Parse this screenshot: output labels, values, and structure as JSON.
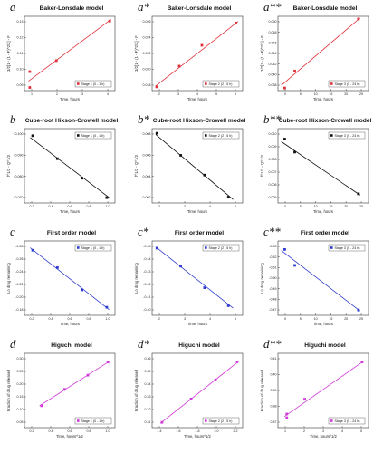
{
  "figure": {
    "layout": "4 rows x 3 columns of scatter plots with linear fits"
  },
  "chart_data": [
    {
      "letter": "a",
      "title": "Baker-Lonsdale model",
      "type": "scatter",
      "xlabel": "Time, hours",
      "ylabel": "3/2[1 - (1 - F)^2/3] - F",
      "xlim": [
        0.8,
        4.2
      ],
      "ylim": [
        0.088,
        0.135
      ],
      "xticks": [
        "1",
        "2",
        "3",
        "4"
      ],
      "yticks": [
        "0.09",
        "0.10",
        "0.11",
        "0.12",
        "0.13"
      ],
      "legend": "Stage 1 (0 - 1 h)",
      "color": "#e0303a",
      "legend_pos": "bottom-right",
      "points": [
        {
          "x": 1,
          "y": 0.09
        },
        {
          "x": 1,
          "y": 0.1
        },
        {
          "x": 2,
          "y": 0.107
        },
        {
          "x": 4,
          "y": 0.132
        }
      ],
      "fit": [
        {
          "x": 0.95,
          "y": 0.094
        },
        {
          "x": 4.05,
          "y": 0.133
        }
      ]
    },
    {
      "letter": "a*",
      "title": "Baker-Lonsdale model",
      "type": "scatter",
      "xlabel": "Time, hours",
      "ylabel": "3/2[1 - (1 - F)^2/3] - F",
      "xlim": [
        1.8,
        5.8
      ],
      "ylim": [
        0.0175,
        0.0275
      ],
      "xticks": [
        "2",
        "3",
        "4",
        "5",
        "6"
      ],
      "yticks": [
        "0.018",
        "0.020",
        "0.022",
        "0.024",
        "0.026"
      ],
      "legend": "Stage 2 (2 - 5 h)",
      "color": "#e0303a",
      "legend_pos": "bottom-right",
      "points": [
        {
          "x": 2,
          "y": 0.018
        },
        {
          "x": 3,
          "y": 0.0208
        },
        {
          "x": 4,
          "y": 0.0236
        },
        {
          "x": 5.5,
          "y": 0.0266
        }
      ],
      "fit": [
        {
          "x": 1.95,
          "y": 0.0181
        },
        {
          "x": 5.6,
          "y": 0.0268
        }
      ]
    },
    {
      "letter": "a**",
      "title": "Baker-Lonsdale model",
      "type": "scatter",
      "xlabel": "Time, hours",
      "ylabel": "3/2[1 - (1 - F)^2/3] - F",
      "xlim": [
        0,
        27
      ],
      "ylim": [
        0.0375,
        0.0515
      ],
      "xticks": [
        "0",
        "5",
        "10",
        "15",
        "20",
        "25"
      ],
      "yticks": [
        "0.038",
        "0.040",
        "0.042",
        "0.044",
        "0.046",
        "0.048",
        "0.050"
      ],
      "legend": "Stage 3 (5 - 24 h)",
      "color": "#e0303a",
      "legend_pos": "bottom-right",
      "points": [
        {
          "x": 2,
          "y": 0.038
        },
        {
          "x": 5,
          "y": 0.0412
        },
        {
          "x": 24,
          "y": 0.051
        }
      ],
      "fit": [
        {
          "x": 1,
          "y": 0.0385
        },
        {
          "x": 24.5,
          "y": 0.0512
        }
      ]
    },
    {
      "letter": "b",
      "title": "Cube-root Hixson-Crowell model",
      "type": "scatter",
      "xlabel": "Time, hours",
      "ylabel": "f^1/3 - Q^1/3",
      "xlim": [
        0.0,
        1.1
      ],
      "ylim": [
        0.066,
        0.108
      ],
      "xticks": [
        "0.2",
        "0.4",
        "0.6",
        "0.8",
        "1.0"
      ],
      "yticks": [
        "0.070",
        "0.080",
        "0.090",
        "0.100"
      ],
      "legend": "Stage 1 (0 - 1 h)",
      "color": "#111111",
      "legend_pos": "top-right",
      "points": [
        {
          "x": 0.1,
          "y": 0.104
        },
        {
          "x": 0.4,
          "y": 0.091
        },
        {
          "x": 0.7,
          "y": 0.08
        },
        {
          "x": 1.0,
          "y": 0.069
        }
      ],
      "fit": [
        {
          "x": 0.07,
          "y": 0.103
        },
        {
          "x": 1.03,
          "y": 0.069
        }
      ]
    },
    {
      "letter": "b*",
      "title": "Cube-root Hixson-Crowell model",
      "type": "scatter",
      "xlabel": "Time, hours",
      "ylabel": "f^1/3 - Q^1/3",
      "xlim": [
        1.8,
        5.6
      ],
      "ylim": [
        0.0018,
        0.0082
      ],
      "xticks": [
        "2",
        "3",
        "4",
        "5"
      ],
      "yticks": [
        "0.002",
        "0.004",
        "0.006",
        "0.008"
      ],
      "legend": "Stage 2 (2 - 5 h)",
      "color": "#111111",
      "legend_pos": "top-right",
      "points": [
        {
          "x": 2,
          "y": 0.0078
        },
        {
          "x": 3,
          "y": 0.0059
        },
        {
          "x": 4,
          "y": 0.0042
        },
        {
          "x": 5,
          "y": 0.0023
        }
      ],
      "fit": [
        {
          "x": 1.95,
          "y": 0.0077
        },
        {
          "x": 5.2,
          "y": 0.0021
        }
      ]
    },
    {
      "letter": "b**",
      "title": "Cube-root Hixson-Crowell model",
      "type": "scatter",
      "xlabel": "Time, hours",
      "ylabel": "f^1/3 - Q^1/3",
      "xlim": [
        0,
        27
      ],
      "ylim": [
        0.0045,
        0.0102
      ],
      "xticks": [
        "0",
        "5",
        "10",
        "15",
        "20",
        "25"
      ],
      "yticks": [
        "0.005",
        "0.006",
        "0.007",
        "0.008",
        "0.009",
        "0.010"
      ],
      "legend": "Stage 3 (5 - 24 h)",
      "color": "#111111",
      "legend_pos": "top-right",
      "points": [
        {
          "x": 2,
          "y": 0.0094
        },
        {
          "x": 5,
          "y": 0.0084
        },
        {
          "x": 24,
          "y": 0.0052
        }
      ],
      "fit": [
        {
          "x": 1,
          "y": 0.0092
        },
        {
          "x": 24.5,
          "y": 0.0051
        }
      ]
    },
    {
      "letter": "c",
      "title": "First order model",
      "type": "scatter",
      "xlabel": "Time, hours",
      "ylabel": "Ln drug remaining",
      "xlim": [
        0.0,
        1.1
      ],
      "ylim": [
        -0.285,
        -0.165
      ],
      "xticks": [
        "0.2",
        "0.4",
        "0.6",
        "0.8",
        "1.0"
      ],
      "yticks": [
        "-0.18",
        "-0.20",
        "-0.22",
        "-0.24",
        "-0.26",
        "-0.28"
      ],
      "legend": "Stage 1 (0 - 1 h)",
      "color": "#2f3cd0",
      "legend_pos": "top-right",
      "points": [
        {
          "x": 0.1,
          "y": -0.18
        },
        {
          "x": 0.4,
          "y": -0.208
        },
        {
          "x": 0.7,
          "y": -0.244
        },
        {
          "x": 1.0,
          "y": -0.272
        }
      ],
      "fit": [
        {
          "x": 0.07,
          "y": -0.176
        },
        {
          "x": 1.03,
          "y": -0.276
        }
      ]
    },
    {
      "letter": "c*",
      "title": "First order model",
      "type": "scatter",
      "xlabel": "Time, hours",
      "ylabel": "Ln drug remaining",
      "xlim": [
        1.8,
        5.6
      ],
      "ylim": [
        -0.456,
        -0.394
      ],
      "xticks": [
        "2",
        "3",
        "4",
        "5"
      ],
      "yticks": [
        "-0.40",
        "-0.41",
        "-0.42",
        "-0.43",
        "-0.44",
        "-0.45"
      ],
      "legend": "Stage 2 (2 - 5 h)",
      "color": "#2f3cd0",
      "legend_pos": "top-right",
      "points": [
        {
          "x": 2,
          "y": -0.4
        },
        {
          "x": 3,
          "y": -0.415
        },
        {
          "x": 4,
          "y": -0.433
        },
        {
          "x": 5,
          "y": -0.448
        }
      ],
      "fit": [
        {
          "x": 1.95,
          "y": -0.399
        },
        {
          "x": 5.2,
          "y": -0.45
        }
      ]
    },
    {
      "letter": "c**",
      "title": "First order model",
      "type": "scatter",
      "xlabel": "Time, hours",
      "ylabel": "Ln drug remaining",
      "xlim": [
        0,
        27
      ],
      "ylim": [
        -0.535,
        -0.465
      ],
      "xticks": [
        "0",
        "5",
        "10",
        "15",
        "20",
        "25"
      ],
      "yticks": [
        "-0.47",
        "-0.48",
        "-0.49",
        "-0.50",
        "-0.51",
        "-0.52",
        "-0.53"
      ],
      "legend": "Stage 3 (5 - 24 h)",
      "color": "#2f3cd0",
      "legend_pos": "top-right",
      "points": [
        {
          "x": 2,
          "y": -0.473
        },
        {
          "x": 5,
          "y": -0.488
        },
        {
          "x": 24,
          "y": -0.53
        }
      ],
      "fit": [
        {
          "x": 1,
          "y": -0.474
        },
        {
          "x": 24.5,
          "y": -0.531
        }
      ]
    },
    {
      "letter": "d",
      "title": "Higuchi model",
      "type": "scatter",
      "xlabel": "Time, hours^1/2",
      "ylabel": "Fraction of drug released",
      "xlim": [
        0.15,
        1.05
      ],
      "ylim": [
        0.0,
        0.34
      ],
      "xticks": [
        "0.2",
        "0.4",
        "0.6",
        "0.8",
        "1.0"
      ],
      "yticks": [
        "0.05",
        "0.10",
        "0.15",
        "0.20",
        "0.25",
        "0.30"
      ],
      "legend": "Stage 1 (0 - 1 h)",
      "color": "#d03ad8",
      "legend_pos": "bottom-right",
      "points": [
        {
          "x": 0.32,
          "y": 0.1
        },
        {
          "x": 0.55,
          "y": 0.175
        },
        {
          "x": 0.78,
          "y": 0.24
        },
        {
          "x": 0.98,
          "y": 0.3
        }
      ],
      "fit": [
        {
          "x": 0.3,
          "y": 0.1
        },
        {
          "x": 1.0,
          "y": 0.305
        }
      ]
    },
    {
      "letter": "d*",
      "title": "Higuchi model",
      "type": "scatter",
      "xlabel": "Time, hours^1/2",
      "ylabel": "Fraction of drug released",
      "xlim": [
        1.3,
        2.3
      ],
      "ylim": [
        0.3,
        0.37
      ],
      "xticks": [
        "1.4",
        "1.6",
        "1.8",
        "2.0",
        "2.2"
      ],
      "yticks": [
        "0.31",
        "0.32",
        "0.33",
        "0.34",
        "0.35",
        "0.36"
      ],
      "legend": "Stage 2 (2 - 5 h)",
      "color": "#d03ad8",
      "legend_pos": "bottom-right",
      "points": [
        {
          "x": 1.41,
          "y": 0.305
        },
        {
          "x": 1.73,
          "y": 0.327
        },
        {
          "x": 2.0,
          "y": 0.345
        },
        {
          "x": 2.24,
          "y": 0.362
        }
      ],
      "fit": [
        {
          "x": 1.39,
          "y": 0.304
        },
        {
          "x": 2.25,
          "y": 0.362
        }
      ]
    },
    {
      "letter": "d**",
      "title": "Higuchi model",
      "type": "scatter",
      "xlabel": "Time, hours^1/2",
      "ylabel": "Fraction of drug released",
      "xlim": [
        1.0,
        5.2
      ],
      "ylim": [
        0.36,
        0.42
      ],
      "xticks": [
        "1",
        "2",
        "3",
        "4",
        "5"
      ],
      "yticks": [
        "0.37",
        "0.38",
        "0.39",
        "0.40",
        "0.41"
      ],
      "legend": "Stage 3 (5 - 24 h)",
      "color": "#d03ad8",
      "legend_pos": "bottom-right",
      "points": [
        {
          "x": 1.41,
          "y": 0.368
        },
        {
          "x": 1.41,
          "y": 0.371
        },
        {
          "x": 2.24,
          "y": 0.383
        },
        {
          "x": 4.9,
          "y": 0.413
        }
      ],
      "fit": [
        {
          "x": 1.3,
          "y": 0.369
        },
        {
          "x": 5.0,
          "y": 0.414
        }
      ]
    }
  ]
}
